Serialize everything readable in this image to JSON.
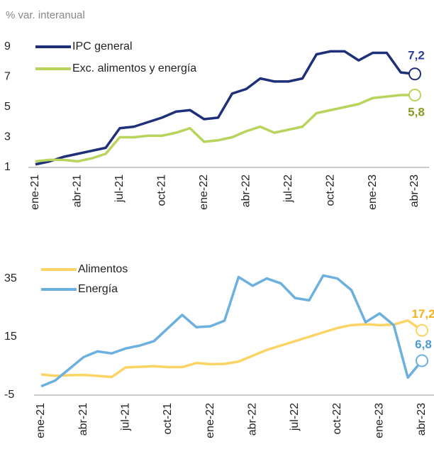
{
  "chart_data": [
    {
      "type": "line",
      "ylabel": "% var. interanual",
      "categories": [
        "ene-21",
        null,
        null,
        "abr-21",
        null,
        null,
        "jul-21",
        null,
        null,
        "oct-21",
        null,
        null,
        "ene-22",
        null,
        null,
        "abr-22",
        null,
        null,
        "jul-22",
        null,
        null,
        "oct-22",
        null,
        null,
        "ene-23",
        null,
        null,
        "abr-23"
      ],
      "ylim": [
        1,
        9
      ],
      "yticks": [
        1,
        3,
        5,
        7,
        9
      ],
      "series": [
        {
          "name": "IPC general",
          "color": "#1f2f7a",
          "label_color": "#2b3f93",
          "values": [
            1.2,
            1.4,
            1.7,
            1.9,
            2.1,
            2.3,
            3.6,
            3.7,
            4.0,
            4.3,
            4.7,
            4.8,
            4.2,
            4.3,
            5.9,
            6.2,
            6.9,
            6.7,
            6.7,
            6.9,
            8.5,
            8.7,
            8.7,
            8.1,
            8.6,
            8.6,
            7.3,
            7.2
          ],
          "value_labels": [
            null,
            null,
            null,
            null,
            null,
            null,
            null,
            null,
            null,
            null,
            null,
            null,
            null,
            null,
            null,
            null,
            null,
            null,
            null,
            null,
            null,
            null,
            null,
            null,
            null,
            null,
            null,
            "7,2"
          ]
        },
        {
          "name": "Exc. alimentos y energía",
          "color": "#b8d45c",
          "label_color": "#8a9a22",
          "values": [
            1.4,
            1.5,
            1.5,
            1.4,
            1.6,
            1.9,
            3.0,
            3.0,
            3.1,
            3.1,
            3.3,
            3.6,
            2.7,
            2.8,
            3.0,
            3.4,
            3.7,
            3.3,
            3.5,
            3.7,
            4.6,
            4.8,
            5.0,
            5.2,
            5.6,
            5.7,
            5.8,
            5.8
          ],
          "value_labels": [
            null,
            null,
            null,
            null,
            null,
            null,
            null,
            null,
            null,
            null,
            null,
            null,
            null,
            null,
            null,
            null,
            null,
            null,
            null,
            null,
            null,
            null,
            null,
            null,
            null,
            null,
            null,
            "5,8"
          ]
        }
      ]
    },
    {
      "type": "line",
      "categories": [
        "ene-21",
        null,
        null,
        "abr-21",
        null,
        null,
        "jul-21",
        null,
        null,
        "oct-21",
        null,
        null,
        "ene-22",
        null,
        null,
        "abr-22",
        null,
        null,
        "jul-22",
        null,
        null,
        "oct-22",
        null,
        null,
        "ene-23",
        null,
        null,
        "abr-23"
      ],
      "ylim": [
        -5,
        40
      ],
      "yticks": [
        -5,
        15,
        35
      ],
      "series": [
        {
          "name": "Alimentos",
          "color": "#fcd466",
          "label_color": "#f2b21c",
          "values": [
            2.1,
            1.6,
            1.8,
            1.9,
            1.6,
            1.2,
            4.5,
            4.7,
            4.9,
            4.6,
            4.6,
            6.0,
            5.6,
            5.7,
            6.5,
            8.5,
            10.5,
            12,
            13.5,
            15,
            16.5,
            18,
            19,
            19.3,
            19.0,
            19.2,
            20.6,
            17.2
          ],
          "value_labels": [
            null,
            null,
            null,
            null,
            null,
            null,
            null,
            null,
            null,
            null,
            null,
            null,
            null,
            null,
            null,
            null,
            null,
            null,
            null,
            null,
            null,
            null,
            null,
            null,
            null,
            null,
            null,
            "17,2"
          ]
        },
        {
          "name": "Energía",
          "color": "#6cb0e0",
          "label_color": "#4c9ad6",
          "values": [
            -2,
            0,
            4,
            8,
            10,
            9.3,
            11,
            12,
            13.5,
            18,
            22.5,
            18.3,
            18.6,
            20.5,
            35.5,
            32.5,
            35,
            33.3,
            28.3,
            27.5,
            36,
            35,
            31,
            20,
            23,
            19,
            1,
            6.8
          ],
          "value_labels": [
            null,
            null,
            null,
            null,
            null,
            null,
            null,
            null,
            null,
            null,
            null,
            null,
            null,
            null,
            null,
            null,
            null,
            null,
            null,
            null,
            null,
            null,
            null,
            null,
            null,
            null,
            null,
            "6,8"
          ]
        }
      ]
    }
  ]
}
